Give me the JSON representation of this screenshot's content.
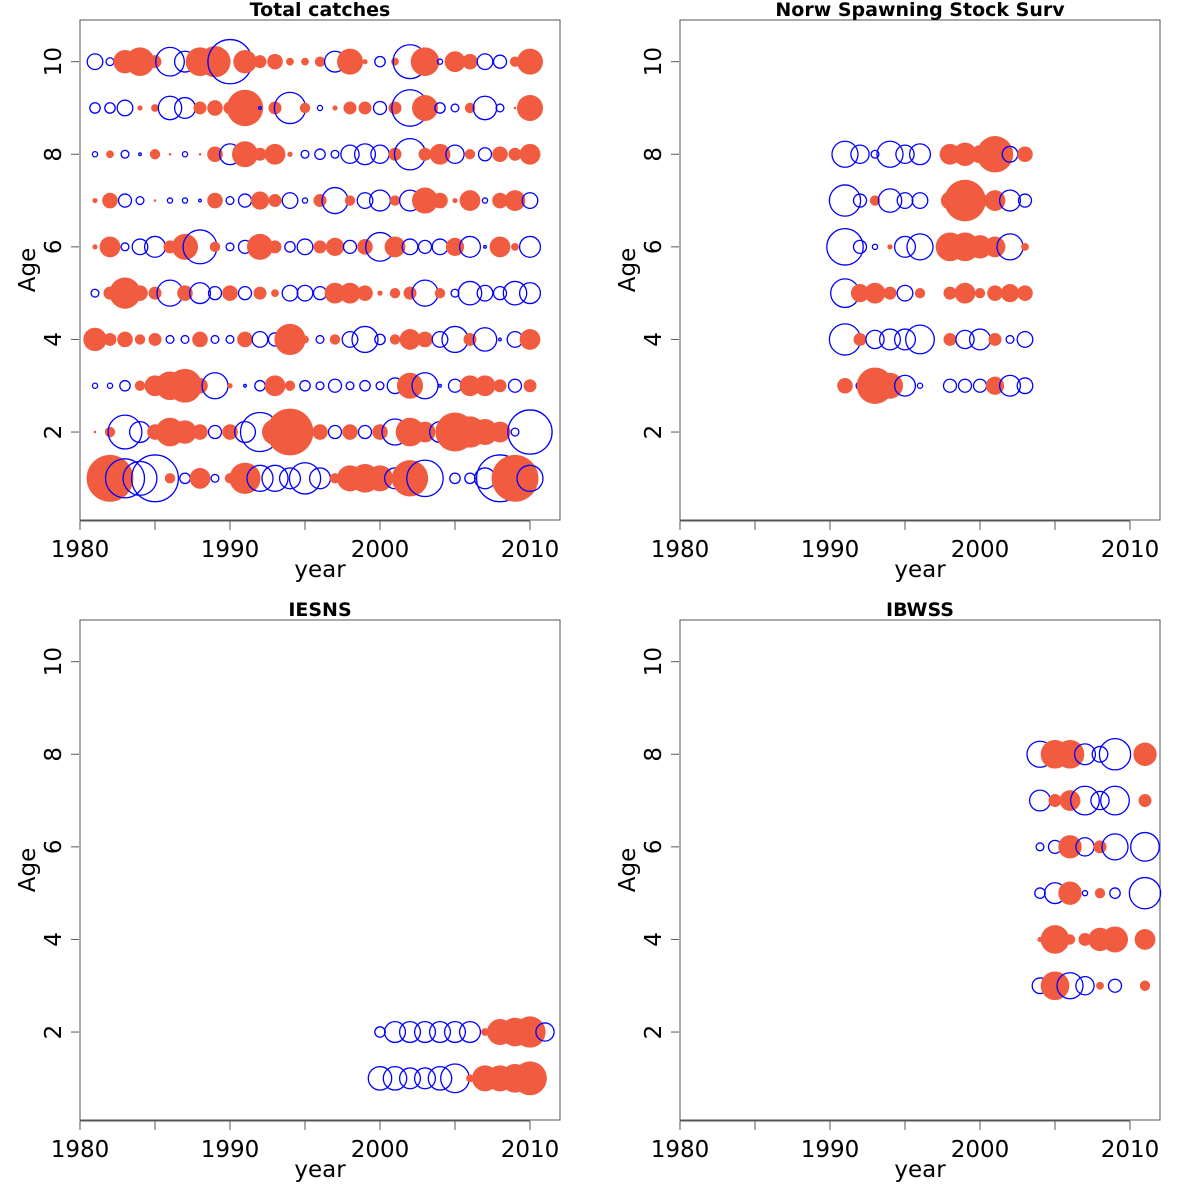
{
  "colors": {
    "positive": "#f15b40",
    "negative": "#0000ff",
    "axis": "#555555"
  },
  "chart_data": [
    {
      "type": "scatter",
      "title": "Total catches",
      "xlabel": "year",
      "ylabel": "Age",
      "xlim": [
        1980,
        2012
      ],
      "ylim": [
        0.1,
        10.9
      ],
      "xticks": [
        1980,
        1990,
        2000,
        2010
      ],
      "yticks": [
        2,
        4,
        6,
        8,
        10
      ],
      "ages": [
        1,
        2,
        3,
        4,
        5,
        6,
        7,
        8,
        9,
        10
      ],
      "years": [
        1981,
        1982,
        1983,
        1984,
        1985,
        1986,
        1987,
        1988,
        1989,
        1990,
        1991,
        1992,
        1993,
        1994,
        1995,
        1996,
        1997,
        1998,
        1999,
        2000,
        2001,
        2002,
        2003,
        2004,
        2005,
        2006,
        2007,
        2008,
        2009,
        2010
      ],
      "residuals": {
        "1": [
          -0.3,
          1.8,
          -1.5,
          -1.3,
          -1.8,
          0.4,
          -0.4,
          0.8,
          -0.3,
          0.4,
          1.2,
          -1.0,
          -1.0,
          -0.8,
          -1.2,
          -0.8,
          0.4,
          1.0,
          1.1,
          1.0,
          -0.8,
          1.4,
          -1.4,
          0.0,
          -0.4,
          -0.4,
          -0.8,
          -1.8,
          1.8,
          -1.0
        ],
        "2": [
          0.1,
          0.4,
          -1.3,
          -0.8,
          0.6,
          1.1,
          0.9,
          0.6,
          -0.5,
          0.6,
          -0.8,
          -1.5,
          1.0,
          1.8,
          0.6,
          0.6,
          -0.5,
          0.6,
          -0.5,
          0.6,
          -1.0,
          1.1,
          0.8,
          -0.8,
          1.5,
          1.2,
          1.0,
          0.8,
          -0.3,
          -1.7
        ],
        "3": [
          -0.2,
          -0.2,
          -0.4,
          0.4,
          0.8,
          1.1,
          1.3,
          0.6,
          -1.0,
          0.2,
          -0.1,
          -0.4,
          0.8,
          0.4,
          -0.4,
          -0.3,
          -0.5,
          -0.3,
          -0.4,
          -0.3,
          -0.6,
          1.0,
          -1.0,
          -0.1,
          -0.5,
          0.8,
          0.8,
          0.5,
          -0.5,
          0.5
        ],
        "4": [
          0.9,
          0.5,
          0.6,
          0.4,
          0.5,
          -0.3,
          -0.3,
          0.6,
          -0.3,
          -0.3,
          0.6,
          -0.6,
          -0.5,
          1.2,
          0.3,
          -0.3,
          0.4,
          -0.6,
          -1.0,
          -0.4,
          0.4,
          0.8,
          0.6,
          -0.6,
          -1.0,
          0.5,
          -0.9,
          -0.1,
          -0.6,
          0.8
        ],
        "5": [
          -0.3,
          0.5,
          1.2,
          0.6,
          0.5,
          -1.0,
          0.6,
          -0.8,
          -0.5,
          0.6,
          -0.5,
          0.5,
          0.3,
          -0.6,
          -0.6,
          -0.5,
          0.8,
          0.8,
          0.6,
          0.2,
          0.4,
          0.5,
          -1.0,
          0.4,
          -0.3,
          -0.9,
          -0.6,
          -0.5,
          -0.9,
          -0.8
        ],
        "6": [
          0.2,
          0.8,
          -0.3,
          -0.6,
          -0.8,
          0.5,
          1.0,
          -1.3,
          0.4,
          -0.3,
          -0.5,
          1.0,
          0.5,
          -0.4,
          -0.6,
          0.5,
          0.7,
          -0.5,
          0.6,
          -1.1,
          0.8,
          -0.6,
          -0.5,
          -0.6,
          0.7,
          -0.8,
          -0.1,
          0.8,
          0.3,
          -0.8
        ],
        "7": [
          0.2,
          0.6,
          -0.5,
          -0.3,
          0.1,
          -0.2,
          -0.2,
          -0.1,
          0.6,
          -0.3,
          -0.5,
          0.7,
          0.5,
          -0.6,
          -0.2,
          0.5,
          -1.0,
          0.4,
          -0.6,
          -0.8,
          0.4,
          -0.8,
          1.0,
          0.6,
          0.2,
          0.8,
          -0.2,
          0.6,
          0.8,
          -0.6
        ],
        "8": [
          -0.2,
          0.3,
          -0.3,
          -0.1,
          0.4,
          0.1,
          -0.2,
          0.1,
          0.6,
          -0.8,
          1.0,
          0.5,
          0.8,
          0.2,
          -0.3,
          -0.4,
          -0.3,
          -0.7,
          -0.8,
          -0.7,
          0.5,
          -1.2,
          0.5,
          0.8,
          -0.7,
          0.4,
          -0.5,
          0.6,
          0.5,
          0.8
        ],
        "9": [
          -0.4,
          -0.4,
          -0.6,
          0.2,
          0.3,
          -0.9,
          -0.8,
          0.5,
          0.6,
          0.5,
          1.4,
          -0.1,
          0.5,
          -1.2,
          0.4,
          -0.2,
          0.2,
          0.5,
          0.5,
          -0.5,
          0.5,
          -1.4,
          1.0,
          -0.4,
          -0.3,
          0.4,
          -0.9,
          -0.3,
          0.1,
          1.0
        ],
        "10": [
          -0.6,
          -0.3,
          0.9,
          1.1,
          0.5,
          -1.1,
          -0.8,
          1.1,
          1.2,
          -1.7,
          0.9,
          0.5,
          0.6,
          0.3,
          0.3,
          0.4,
          -0.8,
          1.0,
          0.2,
          -0.4,
          0.3,
          -1.3,
          1.1,
          -0.2,
          0.8,
          0.6,
          -0.6,
          -0.5,
          0.4,
          1.0
        ]
      }
    },
    {
      "type": "scatter",
      "title": "Norw Spawning Stock Surv",
      "xlabel": "year",
      "ylabel": "Age",
      "xlim": [
        1980,
        2012
      ],
      "ylim": [
        0.1,
        10.9
      ],
      "xticks": [
        1980,
        1990,
        2000,
        2010
      ],
      "yticks": [
        2,
        4,
        6,
        8,
        10
      ],
      "ages": [
        3,
        4,
        5,
        6,
        7,
        8
      ],
      "years": [
        1991,
        1992,
        1993,
        1994,
        1995,
        1996,
        1998,
        1999,
        2000,
        2001,
        2002,
        2003
      ],
      "residuals": {
        "3": [
          0.6,
          -0.3,
          1.4,
          1.0,
          -0.8,
          -0.2,
          -0.5,
          -0.5,
          -0.5,
          0.7,
          -0.8,
          -0.6
        ],
        "4": [
          -1.2,
          0.5,
          -0.7,
          -0.8,
          -0.8,
          -1.1,
          0.5,
          -0.7,
          -0.8,
          0.5,
          -0.3,
          -0.6
        ],
        "5": [
          -1.1,
          0.7,
          0.8,
          0.5,
          -0.6,
          0.4,
          0.5,
          0.8,
          0.4,
          0.6,
          0.7,
          0.6
        ],
        "6": [
          -1.4,
          -0.5,
          -0.2,
          0.2,
          -0.8,
          -1.0,
          1.1,
          1.1,
          0.9,
          0.8,
          -1.0,
          0.3
        ],
        "7": [
          -1.2,
          -0.5,
          0.4,
          -0.9,
          -0.6,
          -0.6,
          0.7,
          1.6,
          0.6,
          0.8,
          -0.8,
          -0.5
        ],
        "8": [
          -1.0,
          -0.7,
          -0.3,
          -1.0,
          -0.7,
          -0.8,
          0.8,
          0.9,
          0.7,
          1.4,
          -0.6,
          0.6
        ]
      }
    },
    {
      "type": "scatter",
      "title": "IESNS",
      "xlabel": "year",
      "ylabel": "Age",
      "xlim": [
        1980,
        2012
      ],
      "ylim": [
        0.1,
        10.9
      ],
      "xticks": [
        1980,
        1990,
        2000,
        2010
      ],
      "yticks": [
        2,
        4,
        6,
        8,
        10
      ],
      "ages": [
        1,
        2
      ],
      "years": [
        2000,
        2001,
        2002,
        2003,
        2004,
        2005,
        2006,
        2007,
        2008,
        2009,
        2010,
        2011
      ],
      "residuals": {
        "1": [
          -0.9,
          -0.9,
          -0.8,
          -0.8,
          -0.9,
          -1.1,
          0.3,
          1.0,
          1.0,
          1.1,
          1.3,
          null
        ],
        "2": [
          -0.4,
          -0.8,
          -0.8,
          -0.8,
          -0.8,
          -0.8,
          -0.8,
          0.3,
          1.0,
          1.1,
          1.2,
          -0.7
        ]
      }
    },
    {
      "type": "scatter",
      "title": "IBWSS",
      "xlabel": "year",
      "ylabel": "Age",
      "xlim": [
        1980,
        2012
      ],
      "ylim": [
        0.1,
        10.9
      ],
      "xticks": [
        1980,
        1990,
        2000,
        2010
      ],
      "yticks": [
        2,
        4,
        6,
        8,
        10
      ],
      "ages": [
        3,
        4,
        5,
        6,
        7,
        8
      ],
      "years": [
        2004,
        2005,
        2006,
        2007,
        2008,
        2009,
        2011
      ],
      "residuals": {
        "3": [
          -0.6,
          1.1,
          -1.0,
          -0.7,
          0.3,
          -0.5,
          0.4
        ],
        "4": [
          0.2,
          1.1,
          0.4,
          0.5,
          0.9,
          1.0,
          0.8
        ],
        "5": [
          -0.4,
          -0.8,
          0.9,
          -0.2,
          0.4,
          -0.4,
          -1.2
        ],
        "6": [
          -0.3,
          -0.5,
          0.9,
          -0.7,
          0.5,
          -1.0,
          -1.1
        ],
        "7": [
          -0.8,
          0.5,
          0.8,
          -1.1,
          -0.7,
          -1.1,
          0.5
        ],
        "8": [
          -1.0,
          1.1,
          1.1,
          -0.8,
          -0.6,
          -1.2,
          0.9
        ]
      }
    }
  ]
}
